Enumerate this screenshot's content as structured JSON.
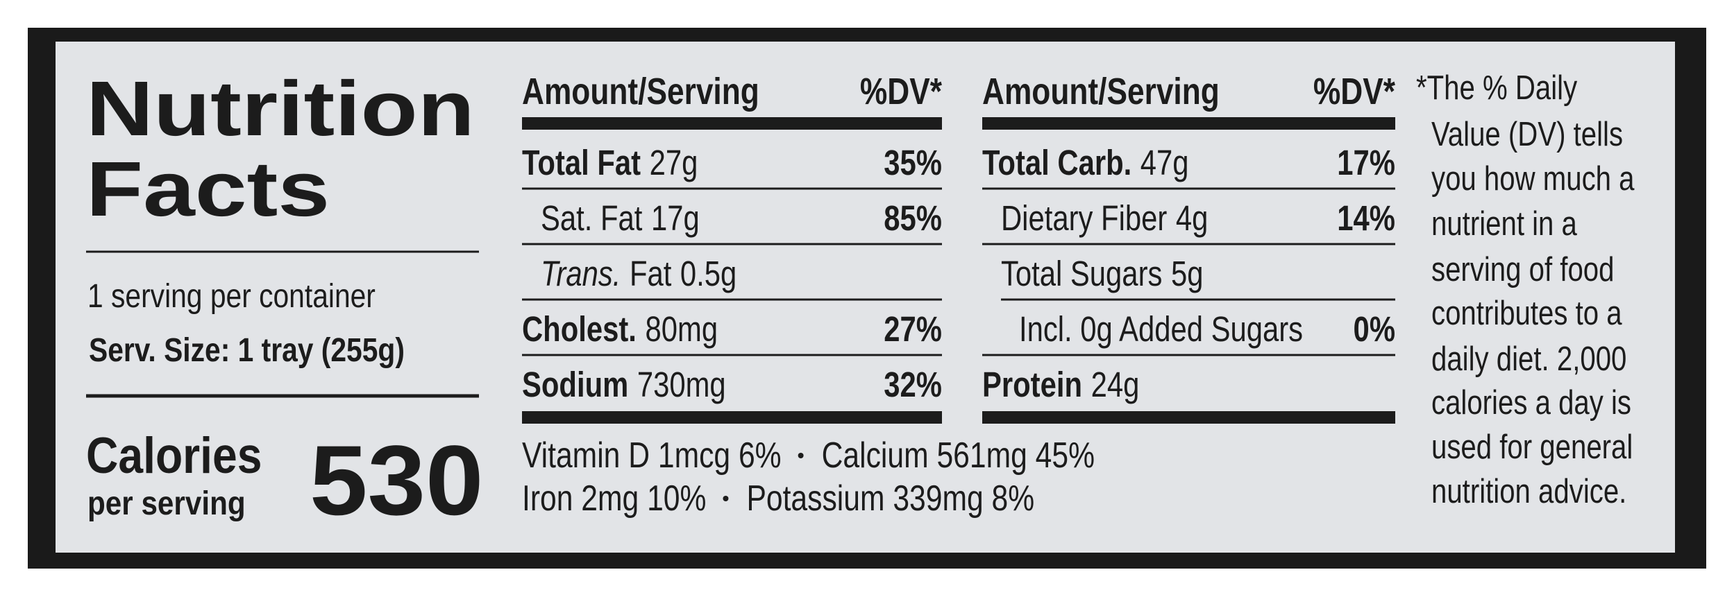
{
  "title": [
    "Nutrition",
    "Facts"
  ],
  "servings": "1 serving per container",
  "serving_size": "Serv. Size: 1 tray (255g)",
  "calories": {
    "label": "Calories",
    "sublabel": "per serving",
    "value": "530"
  },
  "columns": [
    {
      "header": {
        "amount": "Amount/Serving",
        "dv": "%DV*"
      },
      "rows": [
        {
          "name": "Total Fat",
          "amount": "27g",
          "dv": "35%",
          "bold": true,
          "level": 0
        },
        {
          "name": "Sat. Fat",
          "amount": "17g",
          "dv": "85%",
          "bold": false,
          "level": 1
        },
        {
          "prefix": "Trans.",
          "name": "Fat",
          "amount": "0.5g",
          "bold": false,
          "level": 1
        },
        {
          "name": "Cholest.",
          "amount": "80mg",
          "dv": "27%",
          "bold": true,
          "level": 0
        },
        {
          "name": "Sodium",
          "amount": "730mg",
          "dv": "32%",
          "bold": true,
          "level": 0
        }
      ]
    },
    {
      "header": {
        "amount": "Amount/Serving",
        "dv": "%DV*"
      },
      "rows": [
        {
          "name": "Total Carb.",
          "amount": "47g",
          "dv": "17%",
          "bold": true,
          "level": 0
        },
        {
          "name": "Dietary Fiber",
          "amount": "4g",
          "dv": "14%",
          "bold": false,
          "level": 1
        },
        {
          "name": "Total Sugars",
          "amount": "5g",
          "bold": false,
          "level": 1
        },
        {
          "name": "Incl. 0g Added Sugars",
          "dv": "0%",
          "bold": false,
          "level": 2
        },
        {
          "name": "Protein",
          "amount": "24g",
          "bold": true,
          "level": 0
        }
      ]
    }
  ],
  "vitamins": [
    [
      "Vitamin D 1mcg 6%",
      "Calcium 561mg 45%"
    ],
    [
      "Iron 2mg 10%",
      "Potassium 339mg 8%"
    ]
  ],
  "footnote": [
    "*The % Daily",
    "Value (DV) tells",
    "you how much a",
    "nutrient in a",
    "serving of food",
    "contributes to a",
    "daily diet. 2,000",
    "calories a day is",
    "used for general",
    "nutrition advice."
  ]
}
